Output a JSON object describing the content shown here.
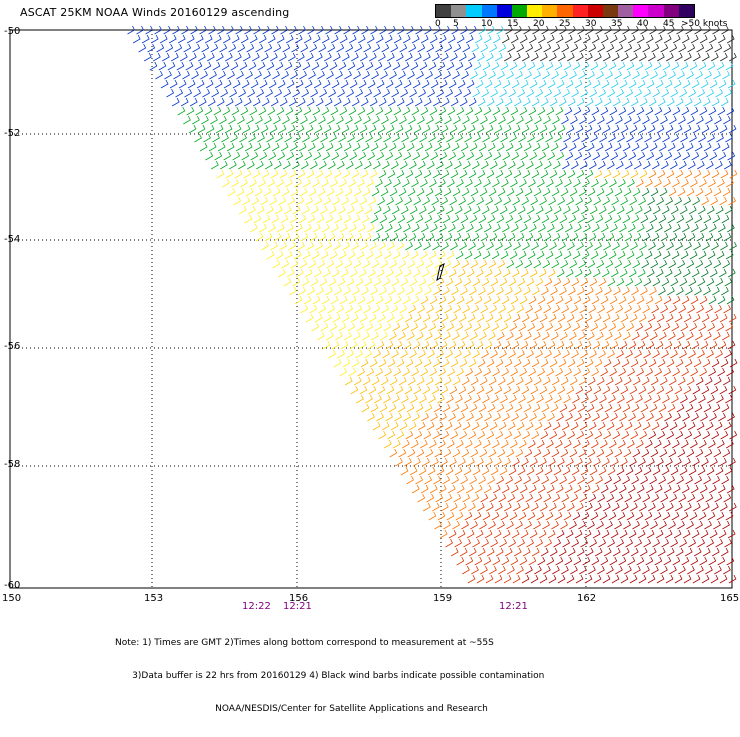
{
  "title": "ASCAT 25KM NOAA Winds 20160129 ascending",
  "legend": {
    "labels": [
      "0",
      "5",
      "10",
      "15",
      "20",
      "25",
      "30",
      "35",
      "40",
      "45",
      ">50 knots"
    ],
    "colors": [
      "#404040",
      "#909090",
      "#00ccff",
      "#0077ff",
      "#0000dd",
      "#00aa00",
      "#ffee00",
      "#ffb000",
      "#ff6600",
      "#ff2222",
      "#cc0000",
      "#7a3a10",
      "#a060a0",
      "#ff00ff",
      "#cc00cc",
      "#800080",
      "#300060"
    ]
  },
  "latitude_labels": [
    "-50",
    "-52",
    "-54",
    "-56",
    "-58",
    "-60"
  ],
  "longitude_labels": [
    "150",
    "153",
    "156",
    "159",
    "162",
    "165"
  ],
  "time_labels": [
    "12:22",
    "12:21",
    "12:21"
  ],
  "notes": [
    "Note: 1) Times are GMT 2)Times along bottom correspond to measurement at ~55S",
    "      3)Data buffer is 22 hrs from 20160129 4) Black wind barbs indicate possible contamination",
    "                                   NOAA/NESDIS/Center for Satellite Applications and Research"
  ],
  "wind_colors": {
    "calm": "#202020",
    "light_blue": "#22ccee",
    "blue": "#0033cc",
    "green": "#00aa22",
    "dark_green": "#007722",
    "yellow": "#ffee22",
    "gold": "#ffbb00",
    "orange": "#ff7700",
    "red": "#dd3300",
    "dark_red": "#aa0000"
  }
}
